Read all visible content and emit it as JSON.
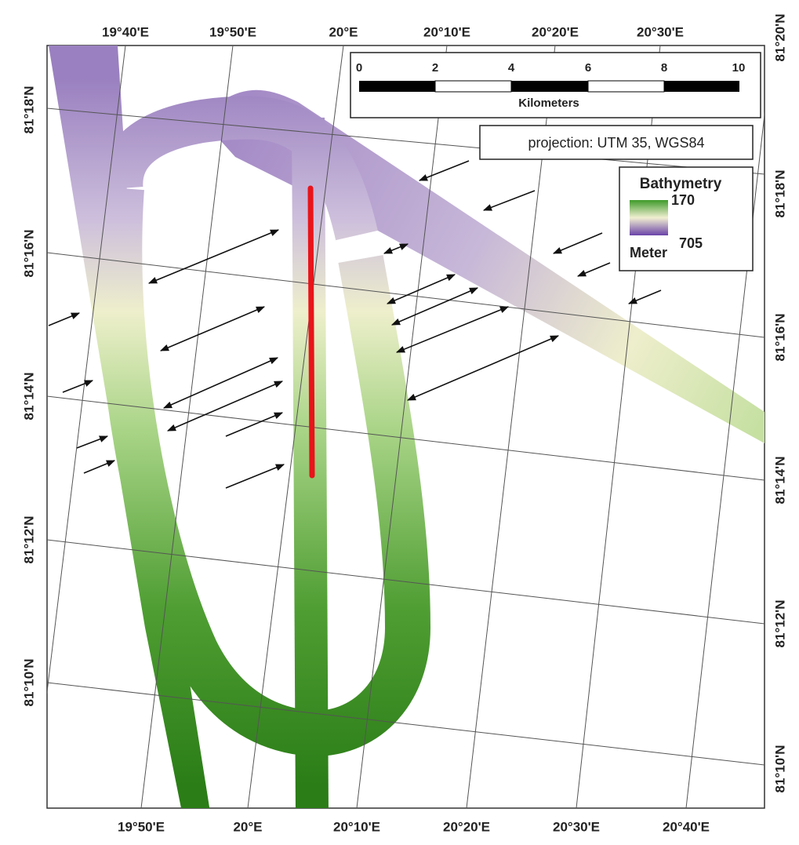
{
  "top_labels": [
    "19°40'E",
    "19°50'E",
    "20°E",
    "20°10'E",
    "20°20'E",
    "20°30'E"
  ],
  "bottom_labels": [
    "19°50'E",
    "20°E",
    "20°10'E",
    "20°20'E",
    "20°30'E",
    "20°40'E"
  ],
  "left_labels": [
    "81°18'N",
    "81°16'N",
    "81°14'N",
    "81°12'N",
    "81°10'N"
  ],
  "right_labels": [
    "81°20'N",
    "81°18'N",
    "81°16'N",
    "81°14'N",
    "81°12'N",
    "81°10'N"
  ],
  "scale_bar": {
    "ticks": [
      0,
      2,
      4,
      6,
      8,
      10
    ],
    "unit": "Kilometers"
  },
  "projection": "projection: UTM 35, WGS84",
  "legend": {
    "title": "Bathymetry",
    "top_value": "170",
    "bottom_value": "705",
    "unit": "Meter"
  }
}
